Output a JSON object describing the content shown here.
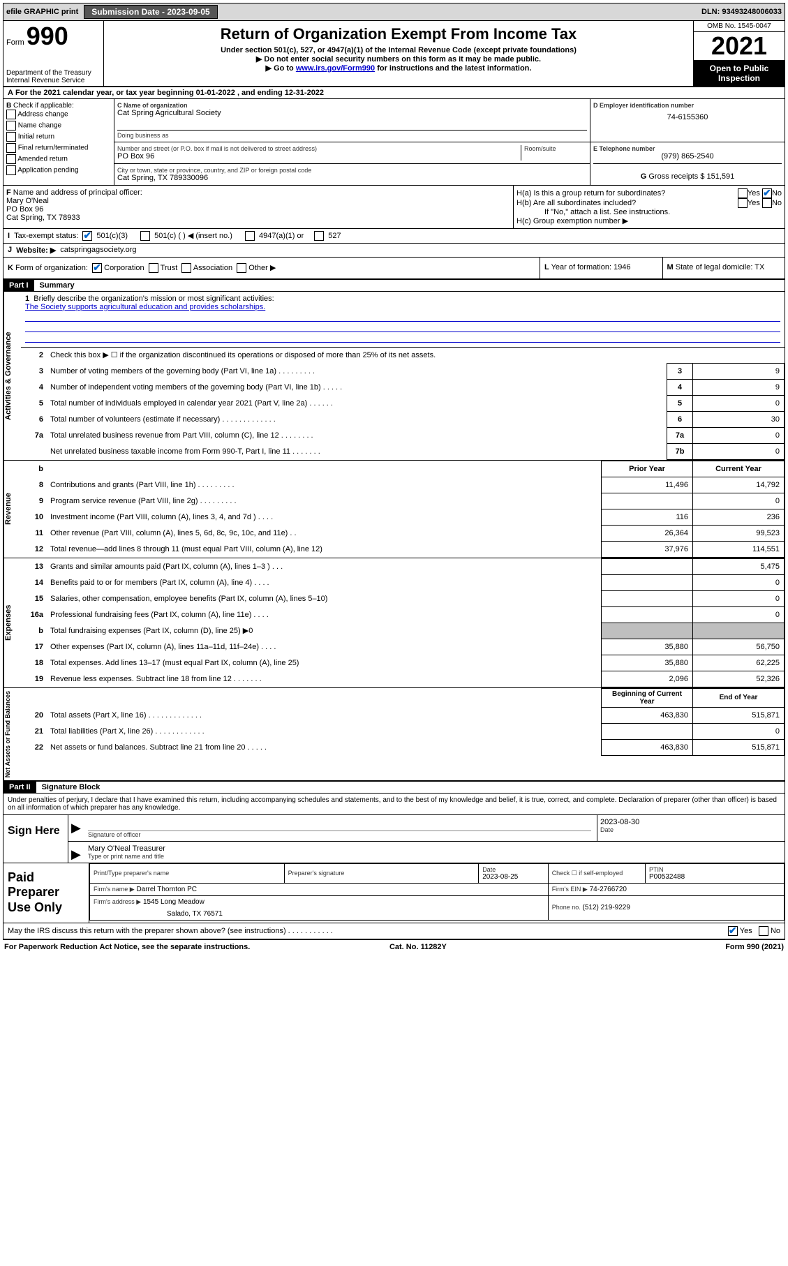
{
  "topbar": {
    "efile": "efile GRAPHIC print",
    "subdate_label": "Submission Date - ",
    "subdate": "2023-09-05",
    "dln_label": "DLN: ",
    "dln": "93493248006033"
  },
  "header": {
    "form_prefix": "Form",
    "form_num": "990",
    "dept1": "Department of the Treasury",
    "dept2": "Internal Revenue Service",
    "title": "Return of Organization Exempt From Income Tax",
    "sub1": "Under section 501(c), 527, or 4947(a)(1) of the Internal Revenue Code (except private foundations)",
    "sub2": "▶ Do not enter social security numbers on this form as it may be made public.",
    "sub3a": "▶ Go to ",
    "sub3link": "www.irs.gov/Form990",
    "sub3b": " for instructions and the latest information.",
    "omb": "OMB No. 1545-0047",
    "year": "2021",
    "inspect1": "Open to Public",
    "inspect2": "Inspection"
  },
  "rowA": {
    "label": "A",
    "text": "For the 2021 calendar year, or tax year beginning 01-01-2022   , and ending 12-31-2022"
  },
  "B": {
    "label": "B",
    "check_label": "Check if applicable:",
    "items": [
      "Address change",
      "Name change",
      "Initial return",
      "Final return/terminated",
      "Amended return",
      "Application pending"
    ]
  },
  "C": {
    "name_label": "C Name of organization",
    "name": "Cat Spring Agricultural Society",
    "dba_label": "Doing business as",
    "street_label": "Number and street (or P.O. box if mail is not delivered to street address)",
    "room_label": "Room/suite",
    "street": "PO Box 96",
    "city_label": "City or town, state or province, country, and ZIP or foreign postal code",
    "city": "Cat Spring, TX  789330096"
  },
  "D": {
    "label": "D Employer identification number",
    "val": "74-6155360"
  },
  "E": {
    "label": "E Telephone number",
    "val": "(979) 865-2540"
  },
  "G": {
    "label": "G",
    "text": "Gross receipts $ 151,591"
  },
  "F": {
    "label": "F",
    "text": "Name and address of principal officer:",
    "l1": "Mary O'Neal",
    "l2": "PO Box 96",
    "l3": "Cat Spring, TX  78933"
  },
  "H": {
    "a": "H(a)  Is this a group return for subordinates?",
    "b": "H(b)  Are all subordinates included?",
    "b2": "If \"No,\" attach a list. See instructions.",
    "c": "H(c)  Group exemption number ▶",
    "yes": "Yes",
    "no": "No"
  },
  "I": {
    "label": "I",
    "text": "Tax-exempt status:",
    "o1": "501(c)(3)",
    "o2": "501(c) (  ) ◀ (insert no.)",
    "o3": "4947(a)(1) or",
    "o4": "527"
  },
  "J": {
    "label": "J",
    "text": "Website: ▶",
    "val": "catspringagsociety.org"
  },
  "K": {
    "label": "K",
    "text": "Form of organization:",
    "o1": "Corporation",
    "o2": "Trust",
    "o3": "Association",
    "o4": "Other ▶"
  },
  "L": {
    "label": "L",
    "text": "Year of formation: 1946"
  },
  "M": {
    "label": "M",
    "text": "State of legal domicile: TX"
  },
  "part1": {
    "header": "Part I",
    "title": "Summary"
  },
  "mission": {
    "num": "1",
    "label": "Briefly describe the organization's mission or most significant activities:",
    "text": "The Society supports agricultural education and provides scholarships."
  },
  "governance_rows": [
    {
      "n": "2",
      "d": "Check this box ▶ ☐  if the organization discontinued its operations or disposed of more than 25% of its net assets.",
      "noval": true
    },
    {
      "n": "3",
      "d": "Number of voting members of the governing body (Part VI, line 1a)   .   .   .   .   .   .   .   .   .",
      "ln": "3",
      "v": "9"
    },
    {
      "n": "4",
      "d": "Number of independent voting members of the governing body (Part VI, line 1b)   .   .   .   .   .",
      "ln": "4",
      "v": "9"
    },
    {
      "n": "5",
      "d": "Total number of individuals employed in calendar year 2021 (Part V, line 2a)   .   .   .   .   .   .",
      "ln": "5",
      "v": "0"
    },
    {
      "n": "6",
      "d": "Total number of volunteers (estimate if necessary)   .   .   .   .   .   .   .   .   .   .   .   .   .",
      "ln": "6",
      "v": "30"
    },
    {
      "n": "7a",
      "d": "Total unrelated business revenue from Part VIII, column (C), line 12   .   .   .   .   .   .   .   .",
      "ln": "7a",
      "v": "0"
    },
    {
      "n": "",
      "d": "Net unrelated business taxable income from Form 990-T, Part I, line 11   .   .   .   .   .   .   .",
      "ln": "7b",
      "v": "0"
    }
  ],
  "rev_header": {
    "b": "b",
    "prior": "Prior Year",
    "cur": "Current Year"
  },
  "revenue_rows": [
    {
      "n": "8",
      "d": "Contributions and grants (Part VIII, line 1h)   .   .   .   .   .   .   .   .   .",
      "p": "11,496",
      "c": "14,792"
    },
    {
      "n": "9",
      "d": "Program service revenue (Part VIII, line 2g)   .   .   .   .   .   .   .   .   .",
      "p": "",
      "c": "0"
    },
    {
      "n": "10",
      "d": "Investment income (Part VIII, column (A), lines 3, 4, and 7d )   .   .   .   .",
      "p": "116",
      "c": "236"
    },
    {
      "n": "11",
      "d": "Other revenue (Part VIII, column (A), lines 5, 6d, 8c, 9c, 10c, and 11e)   .   .",
      "p": "26,364",
      "c": "99,523"
    },
    {
      "n": "12",
      "d": "Total revenue—add lines 8 through 11 (must equal Part VIII, column (A), line 12)",
      "p": "37,976",
      "c": "114,551"
    }
  ],
  "expense_rows": [
    {
      "n": "13",
      "d": "Grants and similar amounts paid (Part IX, column (A), lines 1–3 )   .   .   .",
      "p": "",
      "c": "5,475"
    },
    {
      "n": "14",
      "d": "Benefits paid to or for members (Part IX, column (A), line 4)   .   .   .   .",
      "p": "",
      "c": "0"
    },
    {
      "n": "15",
      "d": "Salaries, other compensation, employee benefits (Part IX, column (A), lines 5–10)",
      "p": "",
      "c": "0"
    },
    {
      "n": "16a",
      "d": "Professional fundraising fees (Part IX, column (A), line 11e)   .   .   .   .",
      "p": "",
      "c": "0"
    },
    {
      "n": "b",
      "d": "Total fundraising expenses (Part IX, column (D), line 25) ▶0",
      "grey": true
    },
    {
      "n": "17",
      "d": "Other expenses (Part IX, column (A), lines 11a–11d, 11f–24e)   .   .   .   .",
      "p": "35,880",
      "c": "56,750"
    },
    {
      "n": "18",
      "d": "Total expenses. Add lines 13–17 (must equal Part IX, column (A), line 25)",
      "p": "35,880",
      "c": "62,225"
    },
    {
      "n": "19",
      "d": "Revenue less expenses. Subtract line 18 from line 12   .   .   .   .   .   .   .",
      "p": "2,096",
      "c": "52,326"
    }
  ],
  "na_header": {
    "prior": "Beginning of Current Year",
    "cur": "End of Year"
  },
  "na_rows": [
    {
      "n": "20",
      "d": "Total assets (Part X, line 16)   .   .   .   .   .   .   .   .   .   .   .   .   .",
      "p": "463,830",
      "c": "515,871"
    },
    {
      "n": "21",
      "d": "Total liabilities (Part X, line 26)   .   .   .   .   .   .   .   .   .   .   .   .",
      "p": "",
      "c": "0"
    },
    {
      "n": "22",
      "d": "Net assets or fund balances. Subtract line 21 from line 20   .   .   .   .   .",
      "p": "463,830",
      "c": "515,871"
    }
  ],
  "vtabs": {
    "gov": "Activities & Governance",
    "rev": "Revenue",
    "exp": "Expenses",
    "na": "Net Assets or Fund Balances"
  },
  "part2": {
    "header": "Part II",
    "title": "Signature Block"
  },
  "perjury": "Under penalties of perjury, I declare that I have examined this return, including accompanying schedules and statements, and to the best of my knowledge and belief, it is true, correct, and complete. Declaration of preparer (other than officer) is based on all information of which preparer has any knowledge.",
  "sign": {
    "label": "Sign Here",
    "sig_label": "Signature of officer",
    "date_label": "Date",
    "date": "2023-08-30",
    "name": "Mary O'Neal  Treasurer",
    "name_label": "Type or print name and title"
  },
  "prep": {
    "label": "Paid Preparer Use Only",
    "h1": "Print/Type preparer's name",
    "h2": "Preparer's signature",
    "h3": "Date",
    "h3v": "2023-08-25",
    "h4": "Check ☐ if self-employed",
    "h5": "PTIN",
    "h5v": "P00532488",
    "firm_label": "Firm's name    ▶",
    "firm": "Darrel Thornton PC",
    "ein_label": "Firm's EIN ▶",
    "ein": "74-2766720",
    "addr_label": "Firm's address ▶",
    "addr1": "1545 Long Meadow",
    "addr2": "Salado, TX  76571",
    "phone_label": "Phone no.",
    "phone": "(512) 219-9229"
  },
  "footer": {
    "q": "May the IRS discuss this return with the preparer shown above? (see instructions)   .   .   .   .   .   .   .   .   .   .   .",
    "yes": "Yes",
    "no": "No"
  },
  "bottom": {
    "l": "For Paperwork Reduction Act Notice, see the separate instructions.",
    "m": "Cat. No. 11282Y",
    "r": "Form 990 (2021)"
  }
}
